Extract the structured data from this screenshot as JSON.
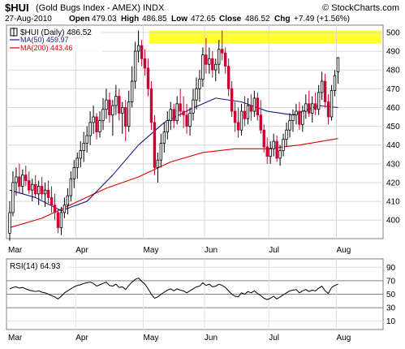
{
  "header": {
    "symbol": "$HUI",
    "name": "(Gold Bugs Index - AMEX)",
    "exchange": "INDX",
    "brand": "© StockCharts.com",
    "date": "27-Aug-2010",
    "open_label": "Open",
    "open": "479.03",
    "high_label": "High",
    "high": "486.85",
    "low_label": "Low",
    "low": "472.65",
    "close_label": "Close",
    "close": "486.52",
    "chg_label": "Chg",
    "chg": "+7.49 (+1.56%)"
  },
  "legend": {
    "price": "$HUI (Daily) 486.52",
    "ma50": "MA(50) 459.97",
    "ma200": "MA(200) 443.46"
  },
  "rsi_label": "RSI(14) 64.93",
  "colors": {
    "up": "#000000",
    "down": "#cc0033",
    "ma50": "#1a1a8c",
    "ma200": "#e00000",
    "highlight": "#ffff33",
    "rsi": "#000000"
  },
  "chart_data": [
    {
      "type": "line",
      "subtype": "candlestick",
      "series": [
        {
          "name": "$HUI (Daily)",
          "ohlc": [
            {
              "o": 393,
              "h": 410,
              "l": 389,
              "c": 404
            },
            {
              "o": 404,
              "h": 426,
              "l": 402,
              "c": 420
            },
            {
              "o": 420,
              "h": 428,
              "l": 413,
              "c": 423
            },
            {
              "o": 423,
              "h": 430,
              "l": 414,
              "c": 418
            },
            {
              "o": 418,
              "h": 427,
              "l": 414,
              "c": 424
            },
            {
              "o": 424,
              "h": 429,
              "l": 418,
              "c": 421
            },
            {
              "o": 421,
              "h": 426,
              "l": 414,
              "c": 416
            },
            {
              "o": 416,
              "h": 422,
              "l": 410,
              "c": 419
            },
            {
              "o": 419,
              "h": 424,
              "l": 412,
              "c": 414
            },
            {
              "o": 414,
              "h": 421,
              "l": 408,
              "c": 418
            },
            {
              "o": 418,
              "h": 423,
              "l": 411,
              "c": 414
            },
            {
              "o": 414,
              "h": 420,
              "l": 407,
              "c": 416
            },
            {
              "o": 416,
              "h": 421,
              "l": 409,
              "c": 412
            },
            {
              "o": 412,
              "h": 418,
              "l": 404,
              "c": 408
            },
            {
              "o": 408,
              "h": 414,
              "l": 400,
              "c": 404
            },
            {
              "o": 404,
              "h": 406,
              "l": 393,
              "c": 396
            },
            {
              "o": 396,
              "h": 407,
              "l": 392,
              "c": 404
            },
            {
              "o": 404,
              "h": 412,
              "l": 401,
              "c": 408
            },
            {
              "o": 408,
              "h": 417,
              "l": 403,
              "c": 413
            },
            {
              "o": 413,
              "h": 426,
              "l": 410,
              "c": 422
            },
            {
              "o": 422,
              "h": 432,
              "l": 417,
              "c": 428
            },
            {
              "o": 428,
              "h": 436,
              "l": 422,
              "c": 433
            },
            {
              "o": 433,
              "h": 442,
              "l": 428,
              "c": 437
            },
            {
              "o": 437,
              "h": 447,
              "l": 431,
              "c": 441
            },
            {
              "o": 441,
              "h": 450,
              "l": 436,
              "c": 445
            },
            {
              "o": 445,
              "h": 458,
              "l": 440,
              "c": 452
            },
            {
              "o": 452,
              "h": 461,
              "l": 446,
              "c": 455
            },
            {
              "o": 455,
              "h": 457,
              "l": 443,
              "c": 447
            },
            {
              "o": 447,
              "h": 458,
              "l": 444,
              "c": 453
            },
            {
              "o": 453,
              "h": 465,
              "l": 448,
              "c": 459
            },
            {
              "o": 459,
              "h": 470,
              "l": 454,
              "c": 464
            },
            {
              "o": 464,
              "h": 468,
              "l": 452,
              "c": 456
            },
            {
              "o": 456,
              "h": 464,
              "l": 445,
              "c": 461
            },
            {
              "o": 461,
              "h": 472,
              "l": 456,
              "c": 466
            },
            {
              "o": 466,
              "h": 470,
              "l": 453,
              "c": 457
            },
            {
              "o": 457,
              "h": 463,
              "l": 446,
              "c": 460
            },
            {
              "o": 460,
              "h": 464,
              "l": 442,
              "c": 450
            },
            {
              "o": 450,
              "h": 469,
              "l": 447,
              "c": 463
            },
            {
              "o": 463,
              "h": 482,
              "l": 460,
              "c": 474
            },
            {
              "o": 474,
              "h": 495,
              "l": 470,
              "c": 490
            },
            {
              "o": 490,
              "h": 501,
              "l": 484,
              "c": 493
            },
            {
              "o": 493,
              "h": 496,
              "l": 482,
              "c": 486
            },
            {
              "o": 486,
              "h": 491,
              "l": 477,
              "c": 481
            },
            {
              "o": 481,
              "h": 486,
              "l": 466,
              "c": 470
            },
            {
              "o": 470,
              "h": 474,
              "l": 448,
              "c": 452
            },
            {
              "o": 452,
              "h": 456,
              "l": 424,
              "c": 428
            },
            {
              "o": 428,
              "h": 436,
              "l": 420,
              "c": 432
            },
            {
              "o": 432,
              "h": 446,
              "l": 428,
              "c": 441
            },
            {
              "o": 441,
              "h": 452,
              "l": 436,
              "c": 447
            },
            {
              "o": 447,
              "h": 458,
              "l": 443,
              "c": 453
            },
            {
              "o": 453,
              "h": 463,
              "l": 448,
              "c": 459
            },
            {
              "o": 459,
              "h": 462,
              "l": 449,
              "c": 453
            },
            {
              "o": 453,
              "h": 466,
              "l": 451,
              "c": 462
            },
            {
              "o": 462,
              "h": 470,
              "l": 455,
              "c": 458
            },
            {
              "o": 458,
              "h": 466,
              "l": 449,
              "c": 456
            },
            {
              "o": 456,
              "h": 462,
              "l": 446,
              "c": 450
            },
            {
              "o": 450,
              "h": 460,
              "l": 445,
              "c": 457
            },
            {
              "o": 457,
              "h": 470,
              "l": 453,
              "c": 464
            },
            {
              "o": 464,
              "h": 476,
              "l": 459,
              "c": 470
            },
            {
              "o": 470,
              "h": 480,
              "l": 463,
              "c": 475
            },
            {
              "o": 475,
              "h": 492,
              "l": 471,
              "c": 488
            },
            {
              "o": 488,
              "h": 497,
              "l": 478,
              "c": 483
            },
            {
              "o": 483,
              "h": 492,
              "l": 478,
              "c": 486
            },
            {
              "o": 486,
              "h": 490,
              "l": 476,
              "c": 480
            },
            {
              "o": 480,
              "h": 486,
              "l": 474,
              "c": 483
            },
            {
              "o": 483,
              "h": 496,
              "l": 478,
              "c": 491
            },
            {
              "o": 491,
              "h": 501,
              "l": 485,
              "c": 489
            },
            {
              "o": 489,
              "h": 492,
              "l": 478,
              "c": 482
            },
            {
              "o": 482,
              "h": 486,
              "l": 466,
              "c": 470
            },
            {
              "o": 470,
              "h": 474,
              "l": 455,
              "c": 458
            },
            {
              "o": 458,
              "h": 463,
              "l": 447,
              "c": 452
            },
            {
              "o": 452,
              "h": 460,
              "l": 444,
              "c": 448
            },
            {
              "o": 448,
              "h": 462,
              "l": 445,
              "c": 458
            },
            {
              "o": 458,
              "h": 466,
              "l": 450,
              "c": 454
            },
            {
              "o": 454,
              "h": 465,
              "l": 451,
              "c": 461
            },
            {
              "o": 461,
              "h": 467,
              "l": 453,
              "c": 458
            },
            {
              "o": 458,
              "h": 469,
              "l": 455,
              "c": 465
            },
            {
              "o": 465,
              "h": 468,
              "l": 453,
              "c": 456
            },
            {
              "o": 456,
              "h": 464,
              "l": 446,
              "c": 448
            },
            {
              "o": 448,
              "h": 451,
              "l": 436,
              "c": 439
            },
            {
              "o": 439,
              "h": 444,
              "l": 430,
              "c": 434
            },
            {
              "o": 434,
              "h": 442,
              "l": 430,
              "c": 438
            },
            {
              "o": 438,
              "h": 446,
              "l": 434,
              "c": 442
            },
            {
              "o": 442,
              "h": 445,
              "l": 431,
              "c": 433
            },
            {
              "o": 433,
              "h": 440,
              "l": 429,
              "c": 437
            },
            {
              "o": 437,
              "h": 446,
              "l": 434,
              "c": 443
            },
            {
              "o": 443,
              "h": 452,
              "l": 439,
              "c": 448
            },
            {
              "o": 448,
              "h": 457,
              "l": 444,
              "c": 453
            },
            {
              "o": 453,
              "h": 459,
              "l": 447,
              "c": 456
            },
            {
              "o": 456,
              "h": 462,
              "l": 451,
              "c": 458
            },
            {
              "o": 458,
              "h": 463,
              "l": 448,
              "c": 451
            },
            {
              "o": 451,
              "h": 461,
              "l": 447,
              "c": 458
            },
            {
              "o": 458,
              "h": 467,
              "l": 454,
              "c": 462
            },
            {
              "o": 462,
              "h": 469,
              "l": 455,
              "c": 457
            },
            {
              "o": 457,
              "h": 466,
              "l": 452,
              "c": 462
            },
            {
              "o": 462,
              "h": 468,
              "l": 456,
              "c": 459
            },
            {
              "o": 459,
              "h": 472,
              "l": 456,
              "c": 468
            },
            {
              "o": 468,
              "h": 479,
              "l": 464,
              "c": 474
            },
            {
              "o": 474,
              "h": 478,
              "l": 460,
              "c": 463
            },
            {
              "o": 463,
              "h": 467,
              "l": 451,
              "c": 455
            },
            {
              "o": 455,
              "h": 472,
              "l": 453,
              "c": 469
            },
            {
              "o": 469,
              "h": 480,
              "l": 466,
              "c": 477
            },
            {
              "o": 479.03,
              "h": 486.85,
              "l": 472.65,
              "c": 486.52
            }
          ]
        },
        {
          "name": "MA(50)",
          "x": [
            0,
            8,
            16,
            24,
            32,
            40,
            48,
            56,
            64,
            72,
            80,
            88,
            96,
            102
          ],
          "values": [
            416,
            412,
            405,
            410,
            424,
            440,
            452,
            459,
            465,
            463,
            458,
            456,
            461,
            459.97
          ]
        },
        {
          "name": "MA(200)",
          "x": [
            0,
            10,
            20,
            30,
            40,
            50,
            60,
            70,
            80,
            90,
            102
          ],
          "values": [
            396,
            401,
            409,
            417,
            423,
            431,
            436,
            438,
            438,
            440,
            443.46
          ]
        }
      ],
      "x_month_labels": [
        {
          "label": "Mar",
          "index": 0
        },
        {
          "label": "Apr",
          "index": 21
        },
        {
          "label": "May",
          "index": 42
        },
        {
          "label": "Jun",
          "index": 61
        },
        {
          "label": "Jul",
          "index": 81
        },
        {
          "label": "Aug",
          "index": 102
        }
      ],
      "x_index_max": 116,
      "y_ticks": [
        400,
        410,
        420,
        430,
        440,
        450,
        460,
        470,
        480,
        490,
        500
      ],
      "ylim": [
        391,
        503
      ],
      "highlight_band": [
        494,
        501
      ],
      "grid": true,
      "axis_side": "right"
    },
    {
      "type": "line",
      "series": [
        {
          "name": "RSI(14)",
          "values": [
            58,
            60,
            61,
            59,
            60,
            58,
            56,
            55,
            54,
            55,
            53,
            52,
            50,
            48,
            46,
            43,
            47,
            52,
            55,
            58,
            61,
            63,
            64,
            66,
            67,
            68,
            66,
            62,
            64,
            66,
            68,
            63,
            62,
            65,
            60,
            61,
            57,
            63,
            68,
            72,
            74,
            69,
            65,
            58,
            50,
            44,
            46,
            50,
            53,
            56,
            58,
            55,
            58,
            56,
            55,
            52,
            55,
            58,
            61,
            62,
            67,
            63,
            65,
            61,
            62,
            65,
            63,
            60,
            55,
            50,
            47,
            46,
            52,
            50,
            54,
            52,
            55,
            51,
            48,
            44,
            42,
            44,
            47,
            43,
            46,
            49,
            52,
            55,
            56,
            57,
            52,
            55,
            57,
            54,
            56,
            55,
            59,
            62,
            55,
            51,
            60,
            63,
            64.93
          ]
        }
      ],
      "y_ticks": [
        10,
        30,
        50,
        70,
        90
      ],
      "ylim": [
        0,
        100
      ],
      "ref_lines": [
        30,
        50,
        70
      ],
      "x_month_labels": [
        "Mar",
        "Apr",
        "May",
        "Jun",
        "Jul",
        "Aug"
      ]
    }
  ]
}
